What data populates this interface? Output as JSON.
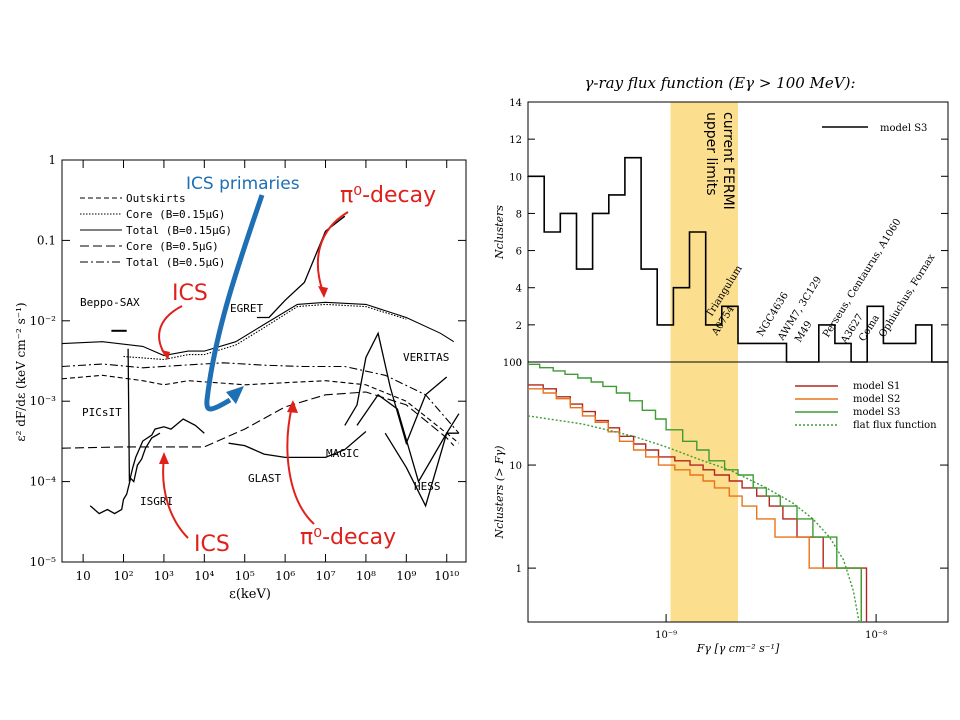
{
  "left_chart": {
    "type": "line",
    "xlabel": "ε(keV)",
    "ylabel": "ε² dF/dε (keV cm⁻² s⁻¹)",
    "x_scale": "log",
    "y_scale": "log",
    "xlim": [
      3,
      30000000000
    ],
    "ylim": [
      1e-05,
      1
    ],
    "x_ticks": [
      {
        "v": 10,
        "label": "10"
      },
      {
        "v": 100,
        "label": "10²"
      },
      {
        "v": 1000,
        "label": "10³"
      },
      {
        "v": 10000,
        "label": "10⁴"
      },
      {
        "v": 100000,
        "label": "10⁵"
      },
      {
        "v": 1000000,
        "label": "10⁶"
      },
      {
        "v": 10000000,
        "label": "10⁷"
      },
      {
        "v": 100000000,
        "label": "10⁸"
      },
      {
        "v": 1000000000,
        "label": "10⁹"
      },
      {
        "v": 10000000000,
        "label": "10¹⁰"
      }
    ],
    "y_ticks": [
      {
        "v": 1,
        "label": "1"
      },
      {
        "v": 0.1,
        "label": "0.1"
      },
      {
        "v": 0.01,
        "label": "10⁻²"
      },
      {
        "v": 0.001,
        "label": "10⁻³"
      },
      {
        "v": 0.0001,
        "label": "10⁻⁴"
      },
      {
        "v": 1e-05,
        "label": "10⁻⁵"
      }
    ],
    "legend": [
      "Outskirts",
      "Core (B=0.15μG)",
      "Total (B=0.15μG)",
      "Core (B=0.5μG)",
      "Total (B=0.5μG)"
    ],
    "series": [
      {
        "name": "Total (B=0.15μG)",
        "dash": "",
        "points": [
          [
            3,
            0.0052
          ],
          [
            30,
            0.0055
          ],
          [
            300,
            0.0048
          ],
          [
            1000,
            0.0037
          ],
          [
            4000,
            0.0042
          ],
          [
            10000,
            0.0042
          ],
          [
            60000,
            0.0055
          ],
          [
            300000,
            0.009
          ],
          [
            2000000,
            0.016
          ],
          [
            10000000,
            0.017
          ],
          [
            100000000,
            0.016
          ],
          [
            1000000000,
            0.011
          ],
          [
            7000000000,
            0.007
          ],
          [
            15000000000,
            0.0055
          ]
        ]
      },
      {
        "name": "Core (B=0.15μG)",
        "dash": "1.5,1.5",
        "points": [
          [
            100,
            0.0036
          ],
          [
            1000,
            0.0033
          ],
          [
            4000,
            0.0038
          ],
          [
            10000,
            0.0038
          ],
          [
            60000,
            0.005
          ],
          [
            300000,
            0.0082
          ],
          [
            2000000,
            0.015
          ],
          [
            10000000,
            0.016
          ],
          [
            100000000,
            0.015
          ],
          [
            1000000000,
            0.0105
          ]
        ]
      },
      {
        "name": "Outskirts",
        "dash": "5,3",
        "points": [
          [
            3,
            0.0019
          ],
          [
            30,
            0.0021
          ],
          [
            300,
            0.0018
          ],
          [
            1000,
            0.0016
          ],
          [
            4000,
            0.0018
          ],
          [
            20000,
            0.0017
          ],
          [
            100000,
            0.0016
          ],
          [
            1000000,
            0.0017
          ],
          [
            10000000,
            0.0018
          ],
          [
            100000000,
            0.0016
          ],
          [
            1000000000,
            0.001
          ],
          [
            10000000000,
            0.0004
          ],
          [
            20000000000,
            0.0003
          ]
        ]
      },
      {
        "name": "Total (B=0.5μG)",
        "dash": "8,3,2,3",
        "points": [
          [
            3,
            0.0027
          ],
          [
            30,
            0.0029
          ],
          [
            300,
            0.0026
          ],
          [
            3000,
            0.0028
          ],
          [
            30000,
            0.003
          ],
          [
            300000,
            0.0028
          ],
          [
            3000000,
            0.0027
          ],
          [
            30000000,
            0.0027
          ],
          [
            300000000,
            0.0021
          ],
          [
            3000000000,
            0.0012
          ],
          [
            20000000000,
            0.0004
          ]
        ]
      },
      {
        "name": "Core (B=0.5μG)",
        "dash": "9,4",
        "points": [
          [
            3,
            0.00026
          ],
          [
            100,
            0.00027
          ],
          [
            1000,
            0.00027
          ],
          [
            10000,
            0.00027
          ],
          [
            100000,
            0.00045
          ],
          [
            1000000,
            0.00085
          ],
          [
            10000000,
            0.0012
          ],
          [
            100000000,
            0.0013
          ],
          [
            1000000000,
            0.0009
          ],
          [
            10000000000,
            0.00035
          ],
          [
            15000000000,
            0.00028
          ]
        ]
      }
    ],
    "instruments": [
      {
        "name": "Beppo-SAX",
        "points": [
          [
            50,
            0.0075
          ],
          [
            120,
            0.0075
          ]
        ]
      },
      {
        "name": "PICsIT",
        "points": [
          [
            130,
            0.0045
          ],
          [
            140,
            0.0001
          ],
          [
            170,
            0.00015
          ],
          [
            200,
            0.0002
          ],
          [
            300,
            0.00032
          ],
          [
            500,
            0.00038
          ],
          [
            600,
            0.00045
          ],
          [
            1000,
            0.00048
          ],
          [
            1500,
            0.00045
          ],
          [
            3000,
            0.0006
          ],
          [
            6000,
            0.0005
          ],
          [
            10000,
            0.0004
          ]
        ]
      },
      {
        "name": "ISGRI",
        "points": [
          [
            15,
            5e-05
          ],
          [
            25,
            4e-05
          ],
          [
            40,
            4.5e-05
          ],
          [
            60,
            4e-05
          ],
          [
            90,
            4.5e-05
          ],
          [
            100,
            6e-05
          ],
          [
            120,
            7e-05
          ],
          [
            150,
            0.00011
          ],
          [
            180,
            0.0001
          ],
          [
            220,
            0.00016
          ],
          [
            280,
            0.00019
          ],
          [
            350,
            0.00026
          ],
          [
            500,
            0.00035
          ],
          [
            800,
            0.0004
          ]
        ]
      },
      {
        "name": "EGRET",
        "points": [
          [
            200000,
            0.011
          ],
          [
            400000,
            0.011
          ],
          [
            1000000,
            0.018
          ],
          [
            3000000,
            0.03
          ],
          [
            10000000,
            0.13
          ],
          [
            30000000,
            0.2
          ]
        ]
      },
      {
        "name": "GLAST",
        "points": [
          [
            40000,
            0.0003
          ],
          [
            100000,
            0.00028
          ],
          [
            300000,
            0.00022
          ],
          [
            1000000,
            0.0002
          ],
          [
            10000000,
            0.0002
          ],
          [
            30000000,
            0.00025
          ],
          [
            100000000,
            0.00042
          ]
        ]
      },
      {
        "name": "MAGIC",
        "points": [
          [
            30000000,
            0.0005
          ],
          [
            60000000,
            0.0009
          ],
          [
            100000000,
            0.0035
          ],
          [
            200000000,
            0.007
          ],
          [
            400000000,
            0.0015
          ],
          [
            1000000000,
            0.0003
          ],
          [
            3000000000,
            0.0012
          ],
          [
            10000000000,
            0.002
          ]
        ]
      },
      {
        "name": "VERITAS",
        "points": [
          [
            60000000,
            0.0005
          ],
          [
            200000000,
            0.0012
          ],
          [
            600000000,
            0.0008
          ],
          [
            2000000000,
            0.0001
          ],
          [
            10000000000,
            0.0004
          ],
          [
            20000000000,
            0.0004
          ]
        ]
      },
      {
        "name": "HESS",
        "points": [
          [
            300000000,
            0.0004
          ],
          [
            1000000000,
            0.00015
          ],
          [
            3000000000,
            5e-05
          ],
          [
            10000000000,
            0.0004
          ],
          [
            20000000000,
            0.0007
          ]
        ]
      }
    ]
  },
  "right_top_chart": {
    "type": "bar",
    "title": "γ-ray flux function (Eγ > 100 MeV):",
    "ylabel": "Nclusters",
    "ylim": [
      0,
      14
    ],
    "y_ticks": [
      "0",
      "2",
      "4",
      "6",
      "8",
      "10",
      "12",
      "14"
    ],
    "legend": "model S3",
    "bin_counts": [
      10,
      7,
      8,
      5,
      8,
      9,
      11,
      5,
      2,
      4,
      7,
      2,
      3,
      1,
      1,
      1,
      0,
      0,
      2,
      1,
      0,
      3,
      1,
      1,
      2,
      0
    ],
    "cluster_labels": [
      "Triangulum",
      "A0754",
      "NGC4636",
      "AWM7, 3C129",
      "M49",
      "Perseus, Centaurus, A1060",
      "A3627",
      "Coma",
      "Ophiuchus, Fornax"
    ],
    "band_text": [
      "current FERMI",
      "upper limits"
    ]
  },
  "right_bottom_chart": {
    "type": "line",
    "xlabel": "Fγ [γ cm⁻² s⁻¹]",
    "ylabel": "Nclusters (> Fγ)",
    "x_scale": "log",
    "y_scale": "log",
    "xlim": [
      2.2e-10,
      2.2e-08
    ],
    "ylim": [
      0.3,
      100
    ],
    "x_ticks": [
      {
        "v": 1e-09,
        "label": "10⁻⁹"
      },
      {
        "v": 1e-08,
        "label": "10⁻⁸"
      }
    ],
    "y_ticks": [
      {
        "v": 100,
        "label": "100"
      },
      {
        "v": 10,
        "label": "10"
      },
      {
        "v": 1,
        "label": "1"
      }
    ],
    "series": [
      {
        "name": "model S1",
        "color": "#b3261e",
        "steps": [
          [
            2.2e-10,
            60
          ],
          [
            2.6e-10,
            55
          ],
          [
            3e-10,
            46
          ],
          [
            3.5e-10,
            39
          ],
          [
            4e-10,
            33
          ],
          [
            4.6e-10,
            27
          ],
          [
            5.3e-10,
            23
          ],
          [
            6e-10,
            19
          ],
          [
            7e-10,
            16
          ],
          [
            8e-10,
            14
          ],
          [
            9.2e-10,
            12
          ],
          [
            1.1e-09,
            11
          ],
          [
            1.3e-09,
            10
          ],
          [
            1.5e-09,
            9
          ],
          [
            1.7e-09,
            8
          ],
          [
            2e-09,
            7
          ],
          [
            2.3e-09,
            6
          ],
          [
            2.7e-09,
            5
          ],
          [
            3.1e-09,
            4
          ],
          [
            3.6e-09,
            3
          ],
          [
            4.2e-09,
            2
          ],
          [
            5.6e-09,
            1
          ],
          [
            9e-09,
            0.3
          ]
        ]
      },
      {
        "name": "model S2",
        "color": "#e8731a",
        "steps": [
          [
            2.2e-10,
            55
          ],
          [
            2.6e-10,
            50
          ],
          [
            3e-10,
            44
          ],
          [
            3.5e-10,
            36
          ],
          [
            4e-10,
            30
          ],
          [
            4.6e-10,
            26
          ],
          [
            5.3e-10,
            21
          ],
          [
            6e-10,
            17
          ],
          [
            7e-10,
            14
          ],
          [
            8e-10,
            12
          ],
          [
            9.2e-10,
            10
          ],
          [
            1.1e-09,
            9
          ],
          [
            1.3e-09,
            8
          ],
          [
            1.5e-09,
            7
          ],
          [
            1.7e-09,
            6
          ],
          [
            2e-09,
            5
          ],
          [
            2.3e-09,
            4
          ],
          [
            2.7e-09,
            3
          ],
          [
            3.3e-09,
            2
          ],
          [
            4.8e-09,
            1
          ],
          [
            8.5e-09,
            0.3
          ]
        ]
      },
      {
        "name": "model S3",
        "color": "#3f9c35",
        "steps": [
          [
            2.2e-10,
            95
          ],
          [
            2.5e-10,
            88
          ],
          [
            2.9e-10,
            82
          ],
          [
            3.3e-10,
            76
          ],
          [
            3.8e-10,
            70
          ],
          [
            4.4e-10,
            64
          ],
          [
            5e-10,
            58
          ],
          [
            5.8e-10,
            50
          ],
          [
            6.7e-10,
            42
          ],
          [
            7.7e-10,
            34
          ],
          [
            8.9e-10,
            28
          ],
          [
            1e-09,
            22
          ],
          [
            1.2e-09,
            17
          ],
          [
            1.4e-09,
            14
          ],
          [
            1.6e-09,
            11
          ],
          [
            1.9e-09,
            9
          ],
          [
            2.2e-09,
            8
          ],
          [
            2.6e-09,
            6
          ],
          [
            3e-09,
            5
          ],
          [
            3.5e-09,
            4
          ],
          [
            4.2e-09,
            3
          ],
          [
            5e-09,
            2
          ],
          [
            6.5e-09,
            1
          ],
          [
            8.5e-09,
            0.3
          ]
        ]
      },
      {
        "name": "flat flux function",
        "color": "#3f9c35",
        "dashed": true,
        "points": [
          [
            2.2e-10,
            30
          ],
          [
            4e-10,
            25
          ],
          [
            7e-10,
            19
          ],
          [
            1e-09,
            15
          ],
          [
            1.5e-09,
            11
          ],
          [
            2e-09,
            9
          ],
          [
            3e-09,
            6
          ],
          [
            4e-09,
            4.3
          ],
          [
            5e-09,
            3
          ],
          [
            6e-09,
            2
          ],
          [
            7e-09,
            1.2
          ],
          [
            7.8e-09,
            0.6
          ],
          [
            8.3e-09,
            0.3
          ]
        ]
      }
    ],
    "fermi_band": [
      1.05e-09,
      2.2e-09
    ]
  },
  "annotations": {
    "ics_primaries": "ICS primaries",
    "pi0_decay_top": "π⁰-decay",
    "ics_top": "ICS",
    "ics_bottom": "ICS",
    "pi0_decay_bottom": "π⁰-decay"
  }
}
